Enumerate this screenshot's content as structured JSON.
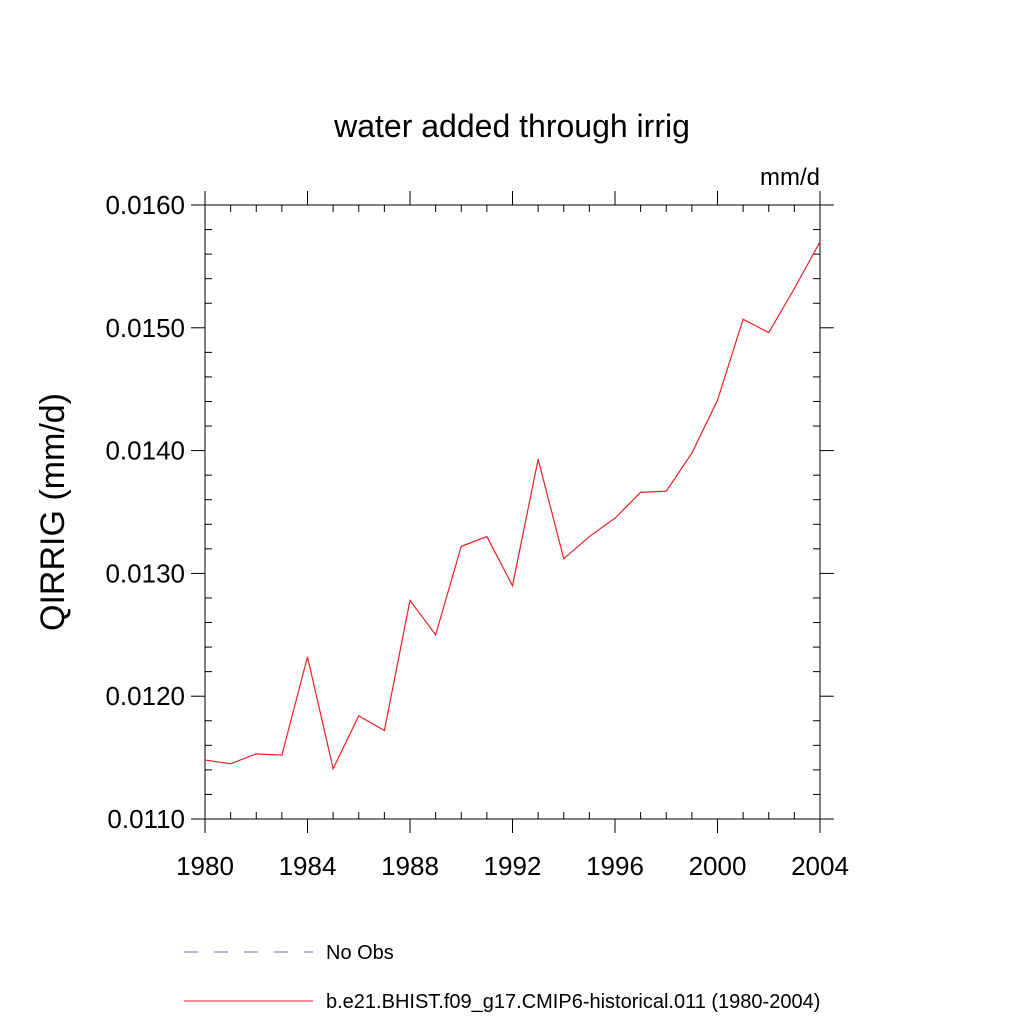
{
  "chart_data": {
    "type": "line",
    "title": "water added through irrig",
    "units": "mm/d",
    "xlabel": "",
    "ylabel": "QIRRIG  (mm/d)",
    "xlim": [
      1980,
      2004
    ],
    "ylim": [
      0.011,
      0.016
    ],
    "x_ticks": [
      1980,
      1984,
      1988,
      1992,
      1996,
      2000,
      2004
    ],
    "x_tick_labels": [
      "1980",
      "1984",
      "1988",
      "1992",
      "1996",
      "2000",
      "2004"
    ],
    "y_ticks": [
      0.011,
      0.012,
      0.013,
      0.014,
      0.015,
      0.016
    ],
    "y_tick_labels": [
      "0.0110",
      "0.0120",
      "0.0130",
      "0.0140",
      "0.0150",
      "0.0160"
    ],
    "grid": false,
    "legend_position": "bottom",
    "series": [
      {
        "name": "No Obs",
        "color": "#6a6ab8",
        "dash": "dashed",
        "x": [],
        "values": []
      },
      {
        "name": "b.e21.BHIST.f09_g17.CMIP6-historical.011 (1980-2004)",
        "color": "#e8212b",
        "dash": "solid",
        "x": [
          1980,
          1981,
          1982,
          1983,
          1984,
          1985,
          1986,
          1987,
          1988,
          1989,
          1990,
          1991,
          1992,
          1993,
          1994,
          1995,
          1996,
          1997,
          1998,
          1999,
          2000,
          2001,
          2002,
          2003,
          2004
        ],
        "values": [
          0.01148,
          0.01145,
          0.01153,
          0.01152,
          0.01232,
          0.01141,
          0.01184,
          0.01172,
          0.01278,
          0.0125,
          0.01322,
          0.0133,
          0.0129,
          0.01393,
          0.01312,
          0.0133,
          0.01345,
          0.01366,
          0.01367,
          0.01398,
          0.01441,
          0.01507,
          0.01496,
          0.01532,
          0.0157
        ]
      }
    ]
  }
}
